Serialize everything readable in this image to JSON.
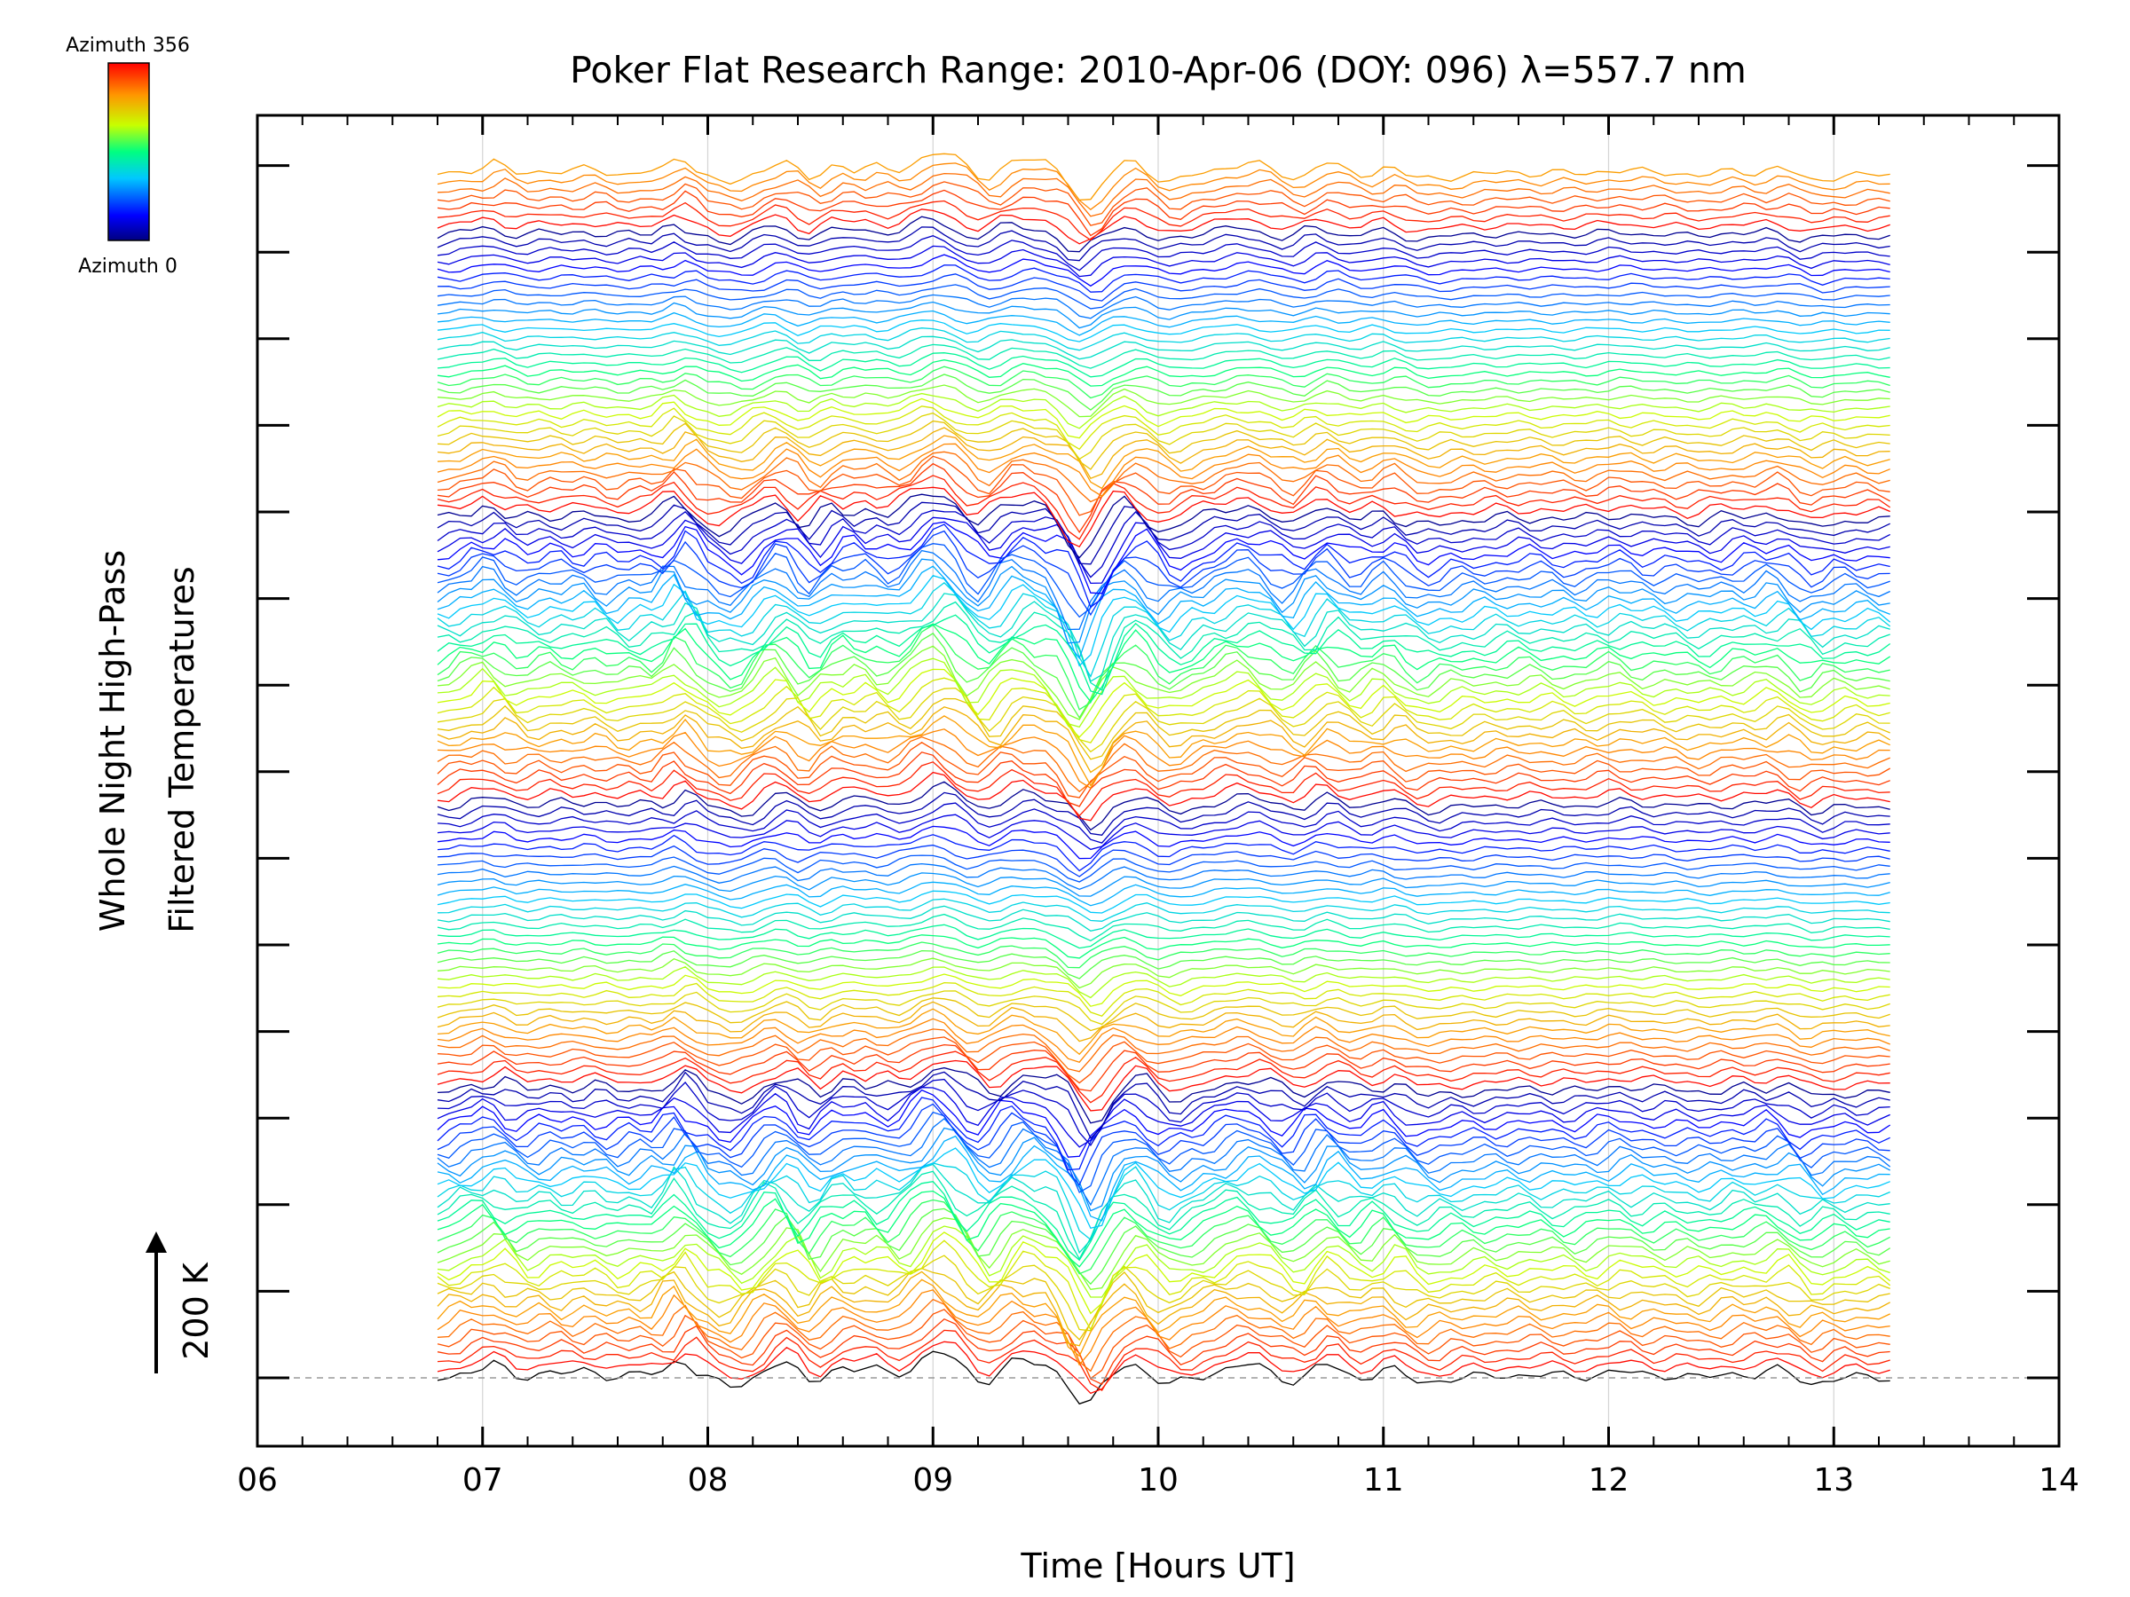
{
  "chart_data": {
    "type": "line",
    "title": "Poker Flat Research Range: 2010-Apr-06 (DOY: 096) λ=557.7 nm",
    "xlabel": "Time [Hours UT]",
    "ylabel_line1": "Whole Night High-Pass",
    "ylabel_line2": "Filtered Temperatures",
    "scale_bar_label": "200 K",
    "xlim": [
      6,
      14
    ],
    "x_tick_labels": [
      "06",
      "07",
      "08",
      "09",
      "10",
      "11",
      "12",
      "13",
      "14"
    ],
    "x_start": 6.8,
    "x_end": 13.25,
    "series_count": 140,
    "stacked_offset_per_trace_K": 20,
    "colorbar": {
      "label_top": "Azimuth 356",
      "label_bottom": "Azimuth 0",
      "min": 0,
      "max": 356
    },
    "baseline_style": "dashed grey",
    "note": "Stacked traces of high-pass filtered temperature, one per azimuth direction, colored by azimuth"
  },
  "colors": {
    "axis": "#000000",
    "grid": "#cccccc",
    "baseline": "#999999"
  }
}
